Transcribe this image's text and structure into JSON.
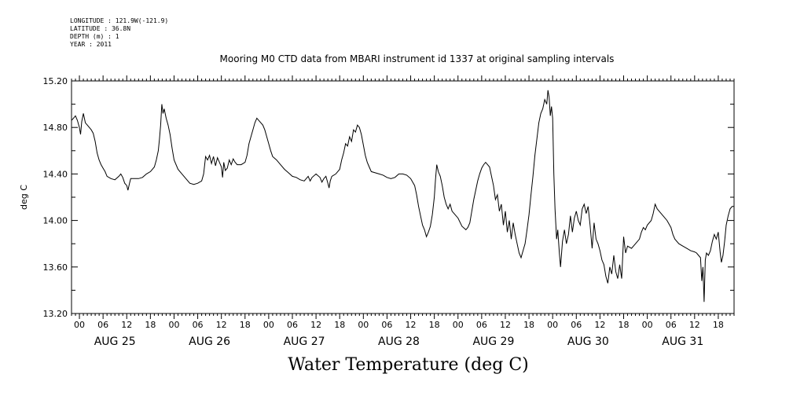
{
  "meta": {
    "longitude": "LONGITUDE : 121.9W(-121.9)",
    "latitude": "LATITUDE : 36.8N",
    "depth": "DEPTH (m) : 1",
    "year": "YEAR : 2011"
  },
  "chart_data": {
    "type": "line",
    "title": "Mooring M0 CTD data from MBARI instrument id 1337 at original sampling intervals",
    "xlabel": "Water Temperature (deg C)",
    "ylabel": "deg C",
    "ylim": [
      13.2,
      15.2
    ],
    "yticks": [
      "13.20",
      "13.60",
      "14.00",
      "14.40",
      "14.80",
      "15.20"
    ],
    "xlim_hours": [
      -2,
      166
    ],
    "hour_tick_labels": [
      "00",
      "06",
      "12",
      "18"
    ],
    "days": [
      "AUG 25",
      "AUG 26",
      "AUG 27",
      "AUG 28",
      "AUG 29",
      "AUG 30",
      "AUG 31"
    ],
    "series": [
      {
        "values": [
          [
            -2,
            14.86
          ],
          [
            -1.5,
            14.88
          ],
          [
            -1,
            14.9
          ],
          [
            -0.5,
            14.86
          ],
          [
            0,
            14.8
          ],
          [
            0.3,
            14.74
          ],
          [
            0.6,
            14.85
          ],
          [
            1,
            14.92
          ],
          [
            1.5,
            14.84
          ],
          [
            2,
            14.82
          ],
          [
            3,
            14.78
          ],
          [
            3.5,
            14.75
          ],
          [
            4,
            14.68
          ],
          [
            4.5,
            14.58
          ],
          [
            5,
            14.52
          ],
          [
            5.5,
            14.48
          ],
          [
            6,
            14.45
          ],
          [
            6.5,
            14.42
          ],
          [
            7,
            14.38
          ],
          [
            8,
            14.36
          ],
          [
            9,
            14.35
          ],
          [
            10,
            14.38
          ],
          [
            10.5,
            14.4
          ],
          [
            11,
            14.37
          ],
          [
            11.5,
            14.32
          ],
          [
            12,
            14.3
          ],
          [
            12.3,
            14.26
          ],
          [
            12.7,
            14.32
          ],
          [
            13,
            14.36
          ],
          [
            14,
            14.36
          ],
          [
            15,
            14.36
          ],
          [
            16,
            14.37
          ],
          [
            17,
            14.4
          ],
          [
            18,
            14.42
          ],
          [
            19,
            14.46
          ],
          [
            19.5,
            14.52
          ],
          [
            20,
            14.6
          ],
          [
            20.3,
            14.7
          ],
          [
            20.6,
            14.82
          ],
          [
            20.9,
            15.0
          ],
          [
            21.2,
            14.92
          ],
          [
            21.5,
            14.96
          ],
          [
            22,
            14.88
          ],
          [
            22.5,
            14.82
          ],
          [
            23,
            14.74
          ],
          [
            23.5,
            14.62
          ],
          [
            24,
            14.52
          ],
          [
            25,
            14.44
          ],
          [
            26,
            14.4
          ],
          [
            27,
            14.36
          ],
          [
            28,
            14.32
          ],
          [
            29,
            14.31
          ],
          [
            30,
            14.32
          ],
          [
            31,
            14.34
          ],
          [
            31.5,
            14.4
          ],
          [
            32,
            14.55
          ],
          [
            32.5,
            14.52
          ],
          [
            33,
            14.56
          ],
          [
            33.5,
            14.49
          ],
          [
            34,
            14.55
          ],
          [
            34.5,
            14.47
          ],
          [
            35,
            14.54
          ],
          [
            35.5,
            14.5
          ],
          [
            36,
            14.46
          ],
          [
            36.3,
            14.37
          ],
          [
            36.6,
            14.5
          ],
          [
            37,
            14.43
          ],
          [
            37.5,
            14.45
          ],
          [
            38,
            14.52
          ],
          [
            38.5,
            14.48
          ],
          [
            39,
            14.53
          ],
          [
            39.5,
            14.5
          ],
          [
            40,
            14.48
          ],
          [
            41,
            14.48
          ],
          [
            42,
            14.5
          ],
          [
            42.5,
            14.56
          ],
          [
            43,
            14.66
          ],
          [
            43.5,
            14.72
          ],
          [
            44,
            14.78
          ],
          [
            44.5,
            14.84
          ],
          [
            45,
            14.88
          ],
          [
            45.5,
            14.86
          ],
          [
            46,
            14.84
          ],
          [
            46.5,
            14.82
          ],
          [
            47,
            14.78
          ],
          [
            47.5,
            14.72
          ],
          [
            48,
            14.66
          ],
          [
            48.5,
            14.6
          ],
          [
            49,
            14.55
          ],
          [
            50,
            14.52
          ],
          [
            51,
            14.48
          ],
          [
            52,
            14.44
          ],
          [
            53,
            14.41
          ],
          [
            54,
            14.38
          ],
          [
            55,
            14.37
          ],
          [
            56,
            14.35
          ],
          [
            57,
            14.34
          ],
          [
            58,
            14.38
          ],
          [
            58.5,
            14.34
          ],
          [
            59,
            14.37
          ],
          [
            60,
            14.4
          ],
          [
            61,
            14.37
          ],
          [
            61.5,
            14.33
          ],
          [
            62,
            14.36
          ],
          [
            62.5,
            14.38
          ],
          [
            63,
            14.32
          ],
          [
            63.3,
            14.28
          ],
          [
            63.6,
            14.34
          ],
          [
            64,
            14.38
          ],
          [
            65,
            14.4
          ],
          [
            66,
            14.44
          ],
          [
            66.5,
            14.52
          ],
          [
            67,
            14.58
          ],
          [
            67.5,
            14.66
          ],
          [
            68,
            14.64
          ],
          [
            68.5,
            14.72
          ],
          [
            69,
            14.68
          ],
          [
            69.5,
            14.78
          ],
          [
            70,
            14.76
          ],
          [
            70.5,
            14.82
          ],
          [
            71,
            14.8
          ],
          [
            71.5,
            14.74
          ],
          [
            72,
            14.65
          ],
          [
            72.5,
            14.56
          ],
          [
            73,
            14.5
          ],
          [
            73.5,
            14.46
          ],
          [
            74,
            14.42
          ],
          [
            75,
            14.41
          ],
          [
            76,
            14.4
          ],
          [
            77,
            14.39
          ],
          [
            78,
            14.37
          ],
          [
            79,
            14.36
          ],
          [
            80,
            14.37
          ],
          [
            81,
            14.4
          ],
          [
            82,
            14.4
          ],
          [
            83,
            14.39
          ],
          [
            84,
            14.36
          ],
          [
            85,
            14.3
          ],
          [
            85.5,
            14.22
          ],
          [
            86,
            14.12
          ],
          [
            86.5,
            14.04
          ],
          [
            87,
            13.96
          ],
          [
            87.5,
            13.92
          ],
          [
            88,
            13.86
          ],
          [
            88.5,
            13.9
          ],
          [
            89,
            13.95
          ],
          [
            89.5,
            14.05
          ],
          [
            90,
            14.2
          ],
          [
            90.3,
            14.35
          ],
          [
            90.6,
            14.48
          ],
          [
            91,
            14.42
          ],
          [
            91.5,
            14.38
          ],
          [
            92,
            14.3
          ],
          [
            92.5,
            14.2
          ],
          [
            93,
            14.14
          ],
          [
            93.5,
            14.1
          ],
          [
            94,
            14.14
          ],
          [
            94.5,
            14.08
          ],
          [
            95,
            14.06
          ],
          [
            96,
            14.02
          ],
          [
            97,
            13.95
          ],
          [
            98,
            13.92
          ],
          [
            98.5,
            13.94
          ],
          [
            99,
            13.98
          ],
          [
            99.5,
            14.08
          ],
          [
            100,
            14.18
          ],
          [
            100.5,
            14.26
          ],
          [
            101,
            14.34
          ],
          [
            101.5,
            14.4
          ],
          [
            102,
            14.45
          ],
          [
            102.5,
            14.48
          ],
          [
            103,
            14.5
          ],
          [
            103.5,
            14.48
          ],
          [
            104,
            14.46
          ],
          [
            104.5,
            14.38
          ],
          [
            105,
            14.3
          ],
          [
            105.5,
            14.18
          ],
          [
            106,
            14.22
          ],
          [
            106.5,
            14.08
          ],
          [
            107,
            14.14
          ],
          [
            107.5,
            13.96
          ],
          [
            108,
            14.08
          ],
          [
            108.5,
            13.9
          ],
          [
            109,
            14.0
          ],
          [
            109.5,
            13.84
          ],
          [
            110,
            13.98
          ],
          [
            110.5,
            13.88
          ],
          [
            111,
            13.8
          ],
          [
            111.5,
            13.72
          ],
          [
            112,
            13.68
          ],
          [
            112.5,
            13.74
          ],
          [
            113,
            13.8
          ],
          [
            113.5,
            13.92
          ],
          [
            114,
            14.05
          ],
          [
            114.5,
            14.22
          ],
          [
            115,
            14.38
          ],
          [
            115.5,
            14.56
          ],
          [
            116,
            14.7
          ],
          [
            116.5,
            14.84
          ],
          [
            117,
            14.92
          ],
          [
            117.5,
            14.96
          ],
          [
            118,
            15.04
          ],
          [
            118.5,
            15.0
          ],
          [
            118.8,
            15.12
          ],
          [
            119.1,
            15.06
          ],
          [
            119.4,
            14.9
          ],
          [
            119.7,
            14.98
          ],
          [
            120,
            14.88
          ],
          [
            120.3,
            14.4
          ],
          [
            120.6,
            14.1
          ],
          [
            121,
            13.84
          ],
          [
            121.3,
            13.92
          ],
          [
            121.7,
            13.72
          ],
          [
            122,
            13.6
          ],
          [
            122.5,
            13.82
          ],
          [
            123,
            13.92
          ],
          [
            123.5,
            13.8
          ],
          [
            124,
            13.88
          ],
          [
            124.5,
            14.04
          ],
          [
            125,
            13.9
          ],
          [
            125.5,
            14.02
          ],
          [
            126,
            14.08
          ],
          [
            126.5,
            14.0
          ],
          [
            127,
            13.96
          ],
          [
            127.5,
            14.1
          ],
          [
            128,
            14.14
          ],
          [
            128.5,
            14.06
          ],
          [
            129,
            14.12
          ],
          [
            129.5,
            13.96
          ],
          [
            130,
            13.76
          ],
          [
            130.5,
            13.98
          ],
          [
            131,
            13.84
          ],
          [
            131.5,
            13.8
          ],
          [
            132,
            13.74
          ],
          [
            132.5,
            13.66
          ],
          [
            133,
            13.62
          ],
          [
            133.5,
            13.52
          ],
          [
            134,
            13.46
          ],
          [
            134.5,
            13.6
          ],
          [
            135,
            13.54
          ],
          [
            135.5,
            13.7
          ],
          [
            136,
            13.56
          ],
          [
            136.5,
            13.5
          ],
          [
            137,
            13.62
          ],
          [
            137.5,
            13.5
          ],
          [
            138,
            13.86
          ],
          [
            138.5,
            13.72
          ],
          [
            139,
            13.78
          ],
          [
            140,
            13.76
          ],
          [
            141,
            13.8
          ],
          [
            142,
            13.84
          ],
          [
            142.5,
            13.9
          ],
          [
            143,
            13.94
          ],
          [
            143.5,
            13.92
          ],
          [
            144,
            13.96
          ],
          [
            145,
            14.0
          ],
          [
            145.5,
            14.06
          ],
          [
            146,
            14.14
          ],
          [
            146.5,
            14.1
          ],
          [
            147,
            14.08
          ],
          [
            148,
            14.04
          ],
          [
            149,
            14.0
          ],
          [
            150,
            13.94
          ],
          [
            150.5,
            13.88
          ],
          [
            151,
            13.84
          ],
          [
            152,
            13.8
          ],
          [
            153,
            13.78
          ],
          [
            154,
            13.76
          ],
          [
            155,
            13.74
          ],
          [
            156,
            13.73
          ],
          [
            156.5,
            13.72
          ],
          [
            157,
            13.7
          ],
          [
            157.5,
            13.68
          ],
          [
            157.8,
            13.48
          ],
          [
            158.1,
            13.6
          ],
          [
            158.4,
            13.3
          ],
          [
            158.7,
            13.66
          ],
          [
            159,
            13.72
          ],
          [
            159.5,
            13.7
          ],
          [
            160,
            13.74
          ],
          [
            160.5,
            13.82
          ],
          [
            161,
            13.88
          ],
          [
            161.5,
            13.84
          ],
          [
            162,
            13.9
          ],
          [
            162.5,
            13.72
          ],
          [
            162.8,
            13.64
          ],
          [
            163.2,
            13.7
          ],
          [
            163.6,
            13.82
          ],
          [
            164,
            13.96
          ],
          [
            164.5,
            14.04
          ],
          [
            165,
            14.1
          ],
          [
            165.5,
            14.12
          ],
          [
            166,
            14.12
          ]
        ]
      }
    ]
  }
}
